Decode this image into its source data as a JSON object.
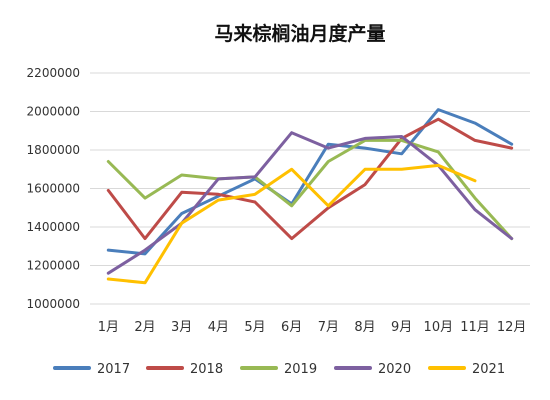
{
  "chart_data": {
    "type": "line",
    "title": "马来棕榈油月度产量",
    "xlabel": "",
    "ylabel": "",
    "ylim": [
      1000000,
      2200000
    ],
    "yticks": [
      1000000,
      1200000,
      1400000,
      1600000,
      1800000,
      2000000,
      2200000
    ],
    "ytick_labels": [
      "1000000",
      "1200000",
      "1400000",
      "1600000",
      "1800000",
      "2000000",
      "2200000"
    ],
    "categories": [
      "1月",
      "2月",
      "3月",
      "4月",
      "5月",
      "6月",
      "7月",
      "8月",
      "9月",
      "10月",
      "11月",
      "12月"
    ],
    "grid": true,
    "legend_position": "bottom",
    "series": [
      {
        "name": "2017",
        "color": "#4a7ebb",
        "values": [
          1280000,
          1260000,
          1470000,
          1560000,
          1650000,
          1520000,
          1830000,
          1810000,
          1780000,
          2010000,
          1940000,
          1830000
        ]
      },
      {
        "name": "2018",
        "color": "#be4b48",
        "values": [
          1590000,
          1340000,
          1580000,
          1570000,
          1530000,
          1340000,
          1500000,
          1620000,
          1860000,
          1960000,
          1850000,
          1810000
        ]
      },
      {
        "name": "2019",
        "color": "#98b954",
        "values": [
          1740000,
          1550000,
          1670000,
          1650000,
          1660000,
          1510000,
          1740000,
          1850000,
          1850000,
          1790000,
          1550000,
          1340000
        ]
      },
      {
        "name": "2020",
        "color": "#7d60a0",
        "values": [
          1160000,
          1280000,
          1420000,
          1650000,
          1660000,
          1890000,
          1810000,
          1860000,
          1870000,
          1720000,
          1490000,
          1340000
        ]
      },
      {
        "name": "2021",
        "color": "#ffc000",
        "values": [
          1130000,
          1110000,
          1420000,
          1540000,
          1570000,
          1700000,
          1510000,
          1700000,
          1700000,
          1720000,
          1640000,
          null
        ]
      }
    ]
  }
}
